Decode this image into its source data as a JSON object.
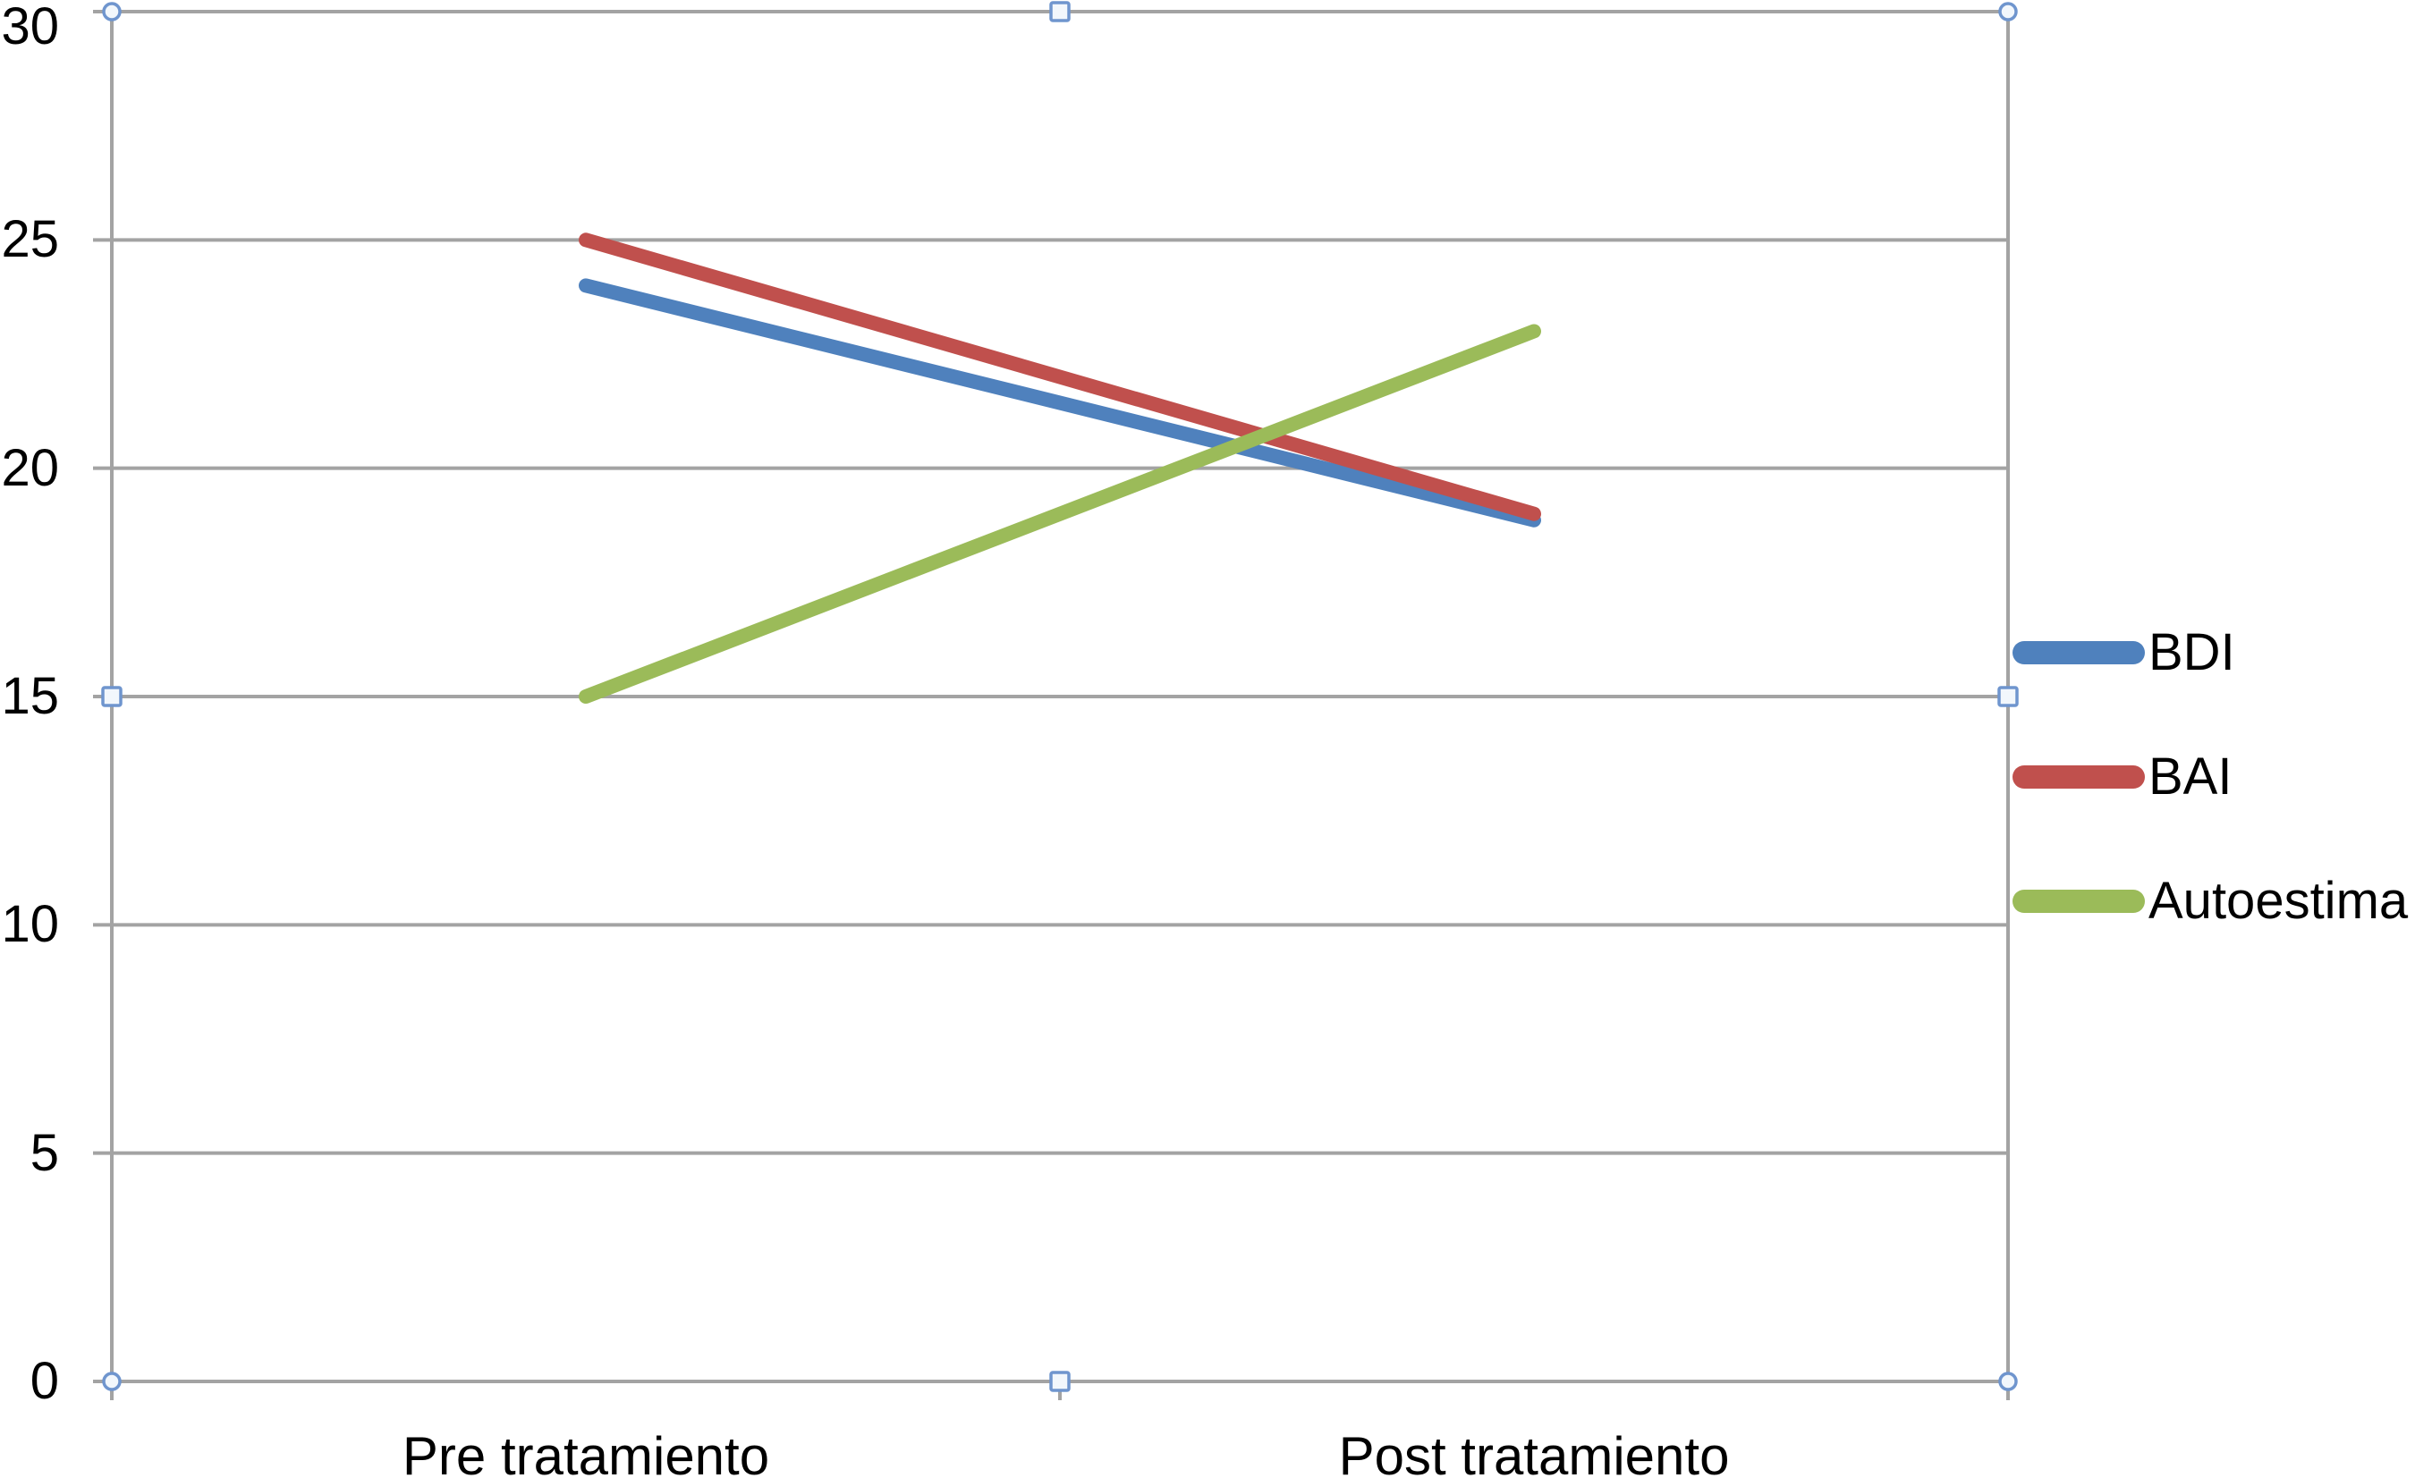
{
  "chart_data": {
    "type": "line",
    "title": "",
    "xlabel": "",
    "ylabel": "",
    "categories": [
      "Pre tratamiento",
      "Post tratamiento"
    ],
    "series": [
      {
        "name": "BDI",
        "color": "#4F81BD",
        "values": [
          24,
          19
        ]
      },
      {
        "name": "BAI",
        "color": "#C0504D",
        "values": [
          25,
          19
        ]
      },
      {
        "name": "Autoestima",
        "color": "#9BBB59",
        "values": [
          15,
          23
        ]
      }
    ],
    "ylim": [
      0,
      30
    ],
    "yticks": [
      0,
      5,
      10,
      15,
      20,
      25,
      30
    ],
    "grid": true,
    "legend_position": "right"
  },
  "colors": {
    "background": "#FFFFFF",
    "gridline": "#A3A3A3",
    "axis": "#A3A3A3",
    "text": "#000000",
    "selection_handle_border": "#6F95CE",
    "selection_handle_fill": "#F2F7FC"
  }
}
